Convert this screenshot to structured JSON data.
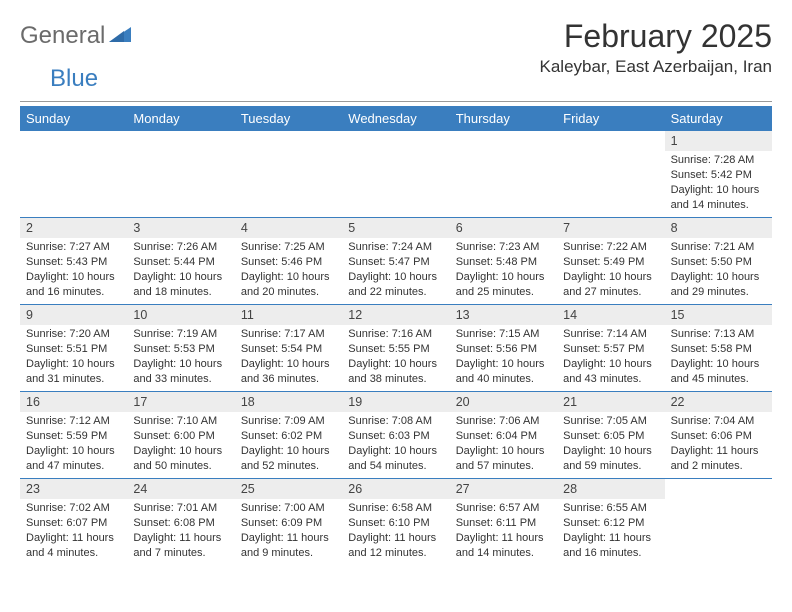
{
  "logo": {
    "part1": "General",
    "part2": "Blue"
  },
  "title": {
    "month": "February 2025",
    "location": "Kaleybar, East Azerbaijan, Iran"
  },
  "colors": {
    "header_bg": "#3a7ebf",
    "header_fg": "#ffffff",
    "daynum_bg": "#ededed",
    "rule": "#3a7ebf",
    "logo_gray": "#6b6b6b",
    "logo_blue": "#3a7ebf"
  },
  "day_names": [
    "Sunday",
    "Monday",
    "Tuesday",
    "Wednesday",
    "Thursday",
    "Friday",
    "Saturday"
  ],
  "weeks": [
    [
      {
        "n": "",
        "sr": "",
        "ss": "",
        "dl": ""
      },
      {
        "n": "",
        "sr": "",
        "ss": "",
        "dl": ""
      },
      {
        "n": "",
        "sr": "",
        "ss": "",
        "dl": ""
      },
      {
        "n": "",
        "sr": "",
        "ss": "",
        "dl": ""
      },
      {
        "n": "",
        "sr": "",
        "ss": "",
        "dl": ""
      },
      {
        "n": "",
        "sr": "",
        "ss": "",
        "dl": ""
      },
      {
        "n": "1",
        "sr": "Sunrise: 7:28 AM",
        "ss": "Sunset: 5:42 PM",
        "dl": "Daylight: 10 hours and 14 minutes."
      }
    ],
    [
      {
        "n": "2",
        "sr": "Sunrise: 7:27 AM",
        "ss": "Sunset: 5:43 PM",
        "dl": "Daylight: 10 hours and 16 minutes."
      },
      {
        "n": "3",
        "sr": "Sunrise: 7:26 AM",
        "ss": "Sunset: 5:44 PM",
        "dl": "Daylight: 10 hours and 18 minutes."
      },
      {
        "n": "4",
        "sr": "Sunrise: 7:25 AM",
        "ss": "Sunset: 5:46 PM",
        "dl": "Daylight: 10 hours and 20 minutes."
      },
      {
        "n": "5",
        "sr": "Sunrise: 7:24 AM",
        "ss": "Sunset: 5:47 PM",
        "dl": "Daylight: 10 hours and 22 minutes."
      },
      {
        "n": "6",
        "sr": "Sunrise: 7:23 AM",
        "ss": "Sunset: 5:48 PM",
        "dl": "Daylight: 10 hours and 25 minutes."
      },
      {
        "n": "7",
        "sr": "Sunrise: 7:22 AM",
        "ss": "Sunset: 5:49 PM",
        "dl": "Daylight: 10 hours and 27 minutes."
      },
      {
        "n": "8",
        "sr": "Sunrise: 7:21 AM",
        "ss": "Sunset: 5:50 PM",
        "dl": "Daylight: 10 hours and 29 minutes."
      }
    ],
    [
      {
        "n": "9",
        "sr": "Sunrise: 7:20 AM",
        "ss": "Sunset: 5:51 PM",
        "dl": "Daylight: 10 hours and 31 minutes."
      },
      {
        "n": "10",
        "sr": "Sunrise: 7:19 AM",
        "ss": "Sunset: 5:53 PM",
        "dl": "Daylight: 10 hours and 33 minutes."
      },
      {
        "n": "11",
        "sr": "Sunrise: 7:17 AM",
        "ss": "Sunset: 5:54 PM",
        "dl": "Daylight: 10 hours and 36 minutes."
      },
      {
        "n": "12",
        "sr": "Sunrise: 7:16 AM",
        "ss": "Sunset: 5:55 PM",
        "dl": "Daylight: 10 hours and 38 minutes."
      },
      {
        "n": "13",
        "sr": "Sunrise: 7:15 AM",
        "ss": "Sunset: 5:56 PM",
        "dl": "Daylight: 10 hours and 40 minutes."
      },
      {
        "n": "14",
        "sr": "Sunrise: 7:14 AM",
        "ss": "Sunset: 5:57 PM",
        "dl": "Daylight: 10 hours and 43 minutes."
      },
      {
        "n": "15",
        "sr": "Sunrise: 7:13 AM",
        "ss": "Sunset: 5:58 PM",
        "dl": "Daylight: 10 hours and 45 minutes."
      }
    ],
    [
      {
        "n": "16",
        "sr": "Sunrise: 7:12 AM",
        "ss": "Sunset: 5:59 PM",
        "dl": "Daylight: 10 hours and 47 minutes."
      },
      {
        "n": "17",
        "sr": "Sunrise: 7:10 AM",
        "ss": "Sunset: 6:00 PM",
        "dl": "Daylight: 10 hours and 50 minutes."
      },
      {
        "n": "18",
        "sr": "Sunrise: 7:09 AM",
        "ss": "Sunset: 6:02 PM",
        "dl": "Daylight: 10 hours and 52 minutes."
      },
      {
        "n": "19",
        "sr": "Sunrise: 7:08 AM",
        "ss": "Sunset: 6:03 PM",
        "dl": "Daylight: 10 hours and 54 minutes."
      },
      {
        "n": "20",
        "sr": "Sunrise: 7:06 AM",
        "ss": "Sunset: 6:04 PM",
        "dl": "Daylight: 10 hours and 57 minutes."
      },
      {
        "n": "21",
        "sr": "Sunrise: 7:05 AM",
        "ss": "Sunset: 6:05 PM",
        "dl": "Daylight: 10 hours and 59 minutes."
      },
      {
        "n": "22",
        "sr": "Sunrise: 7:04 AM",
        "ss": "Sunset: 6:06 PM",
        "dl": "Daylight: 11 hours and 2 minutes."
      }
    ],
    [
      {
        "n": "23",
        "sr": "Sunrise: 7:02 AM",
        "ss": "Sunset: 6:07 PM",
        "dl": "Daylight: 11 hours and 4 minutes."
      },
      {
        "n": "24",
        "sr": "Sunrise: 7:01 AM",
        "ss": "Sunset: 6:08 PM",
        "dl": "Daylight: 11 hours and 7 minutes."
      },
      {
        "n": "25",
        "sr": "Sunrise: 7:00 AM",
        "ss": "Sunset: 6:09 PM",
        "dl": "Daylight: 11 hours and 9 minutes."
      },
      {
        "n": "26",
        "sr": "Sunrise: 6:58 AM",
        "ss": "Sunset: 6:10 PM",
        "dl": "Daylight: 11 hours and 12 minutes."
      },
      {
        "n": "27",
        "sr": "Sunrise: 6:57 AM",
        "ss": "Sunset: 6:11 PM",
        "dl": "Daylight: 11 hours and 14 minutes."
      },
      {
        "n": "28",
        "sr": "Sunrise: 6:55 AM",
        "ss": "Sunset: 6:12 PM",
        "dl": "Daylight: 11 hours and 16 minutes."
      },
      {
        "n": "",
        "sr": "",
        "ss": "",
        "dl": ""
      }
    ]
  ]
}
